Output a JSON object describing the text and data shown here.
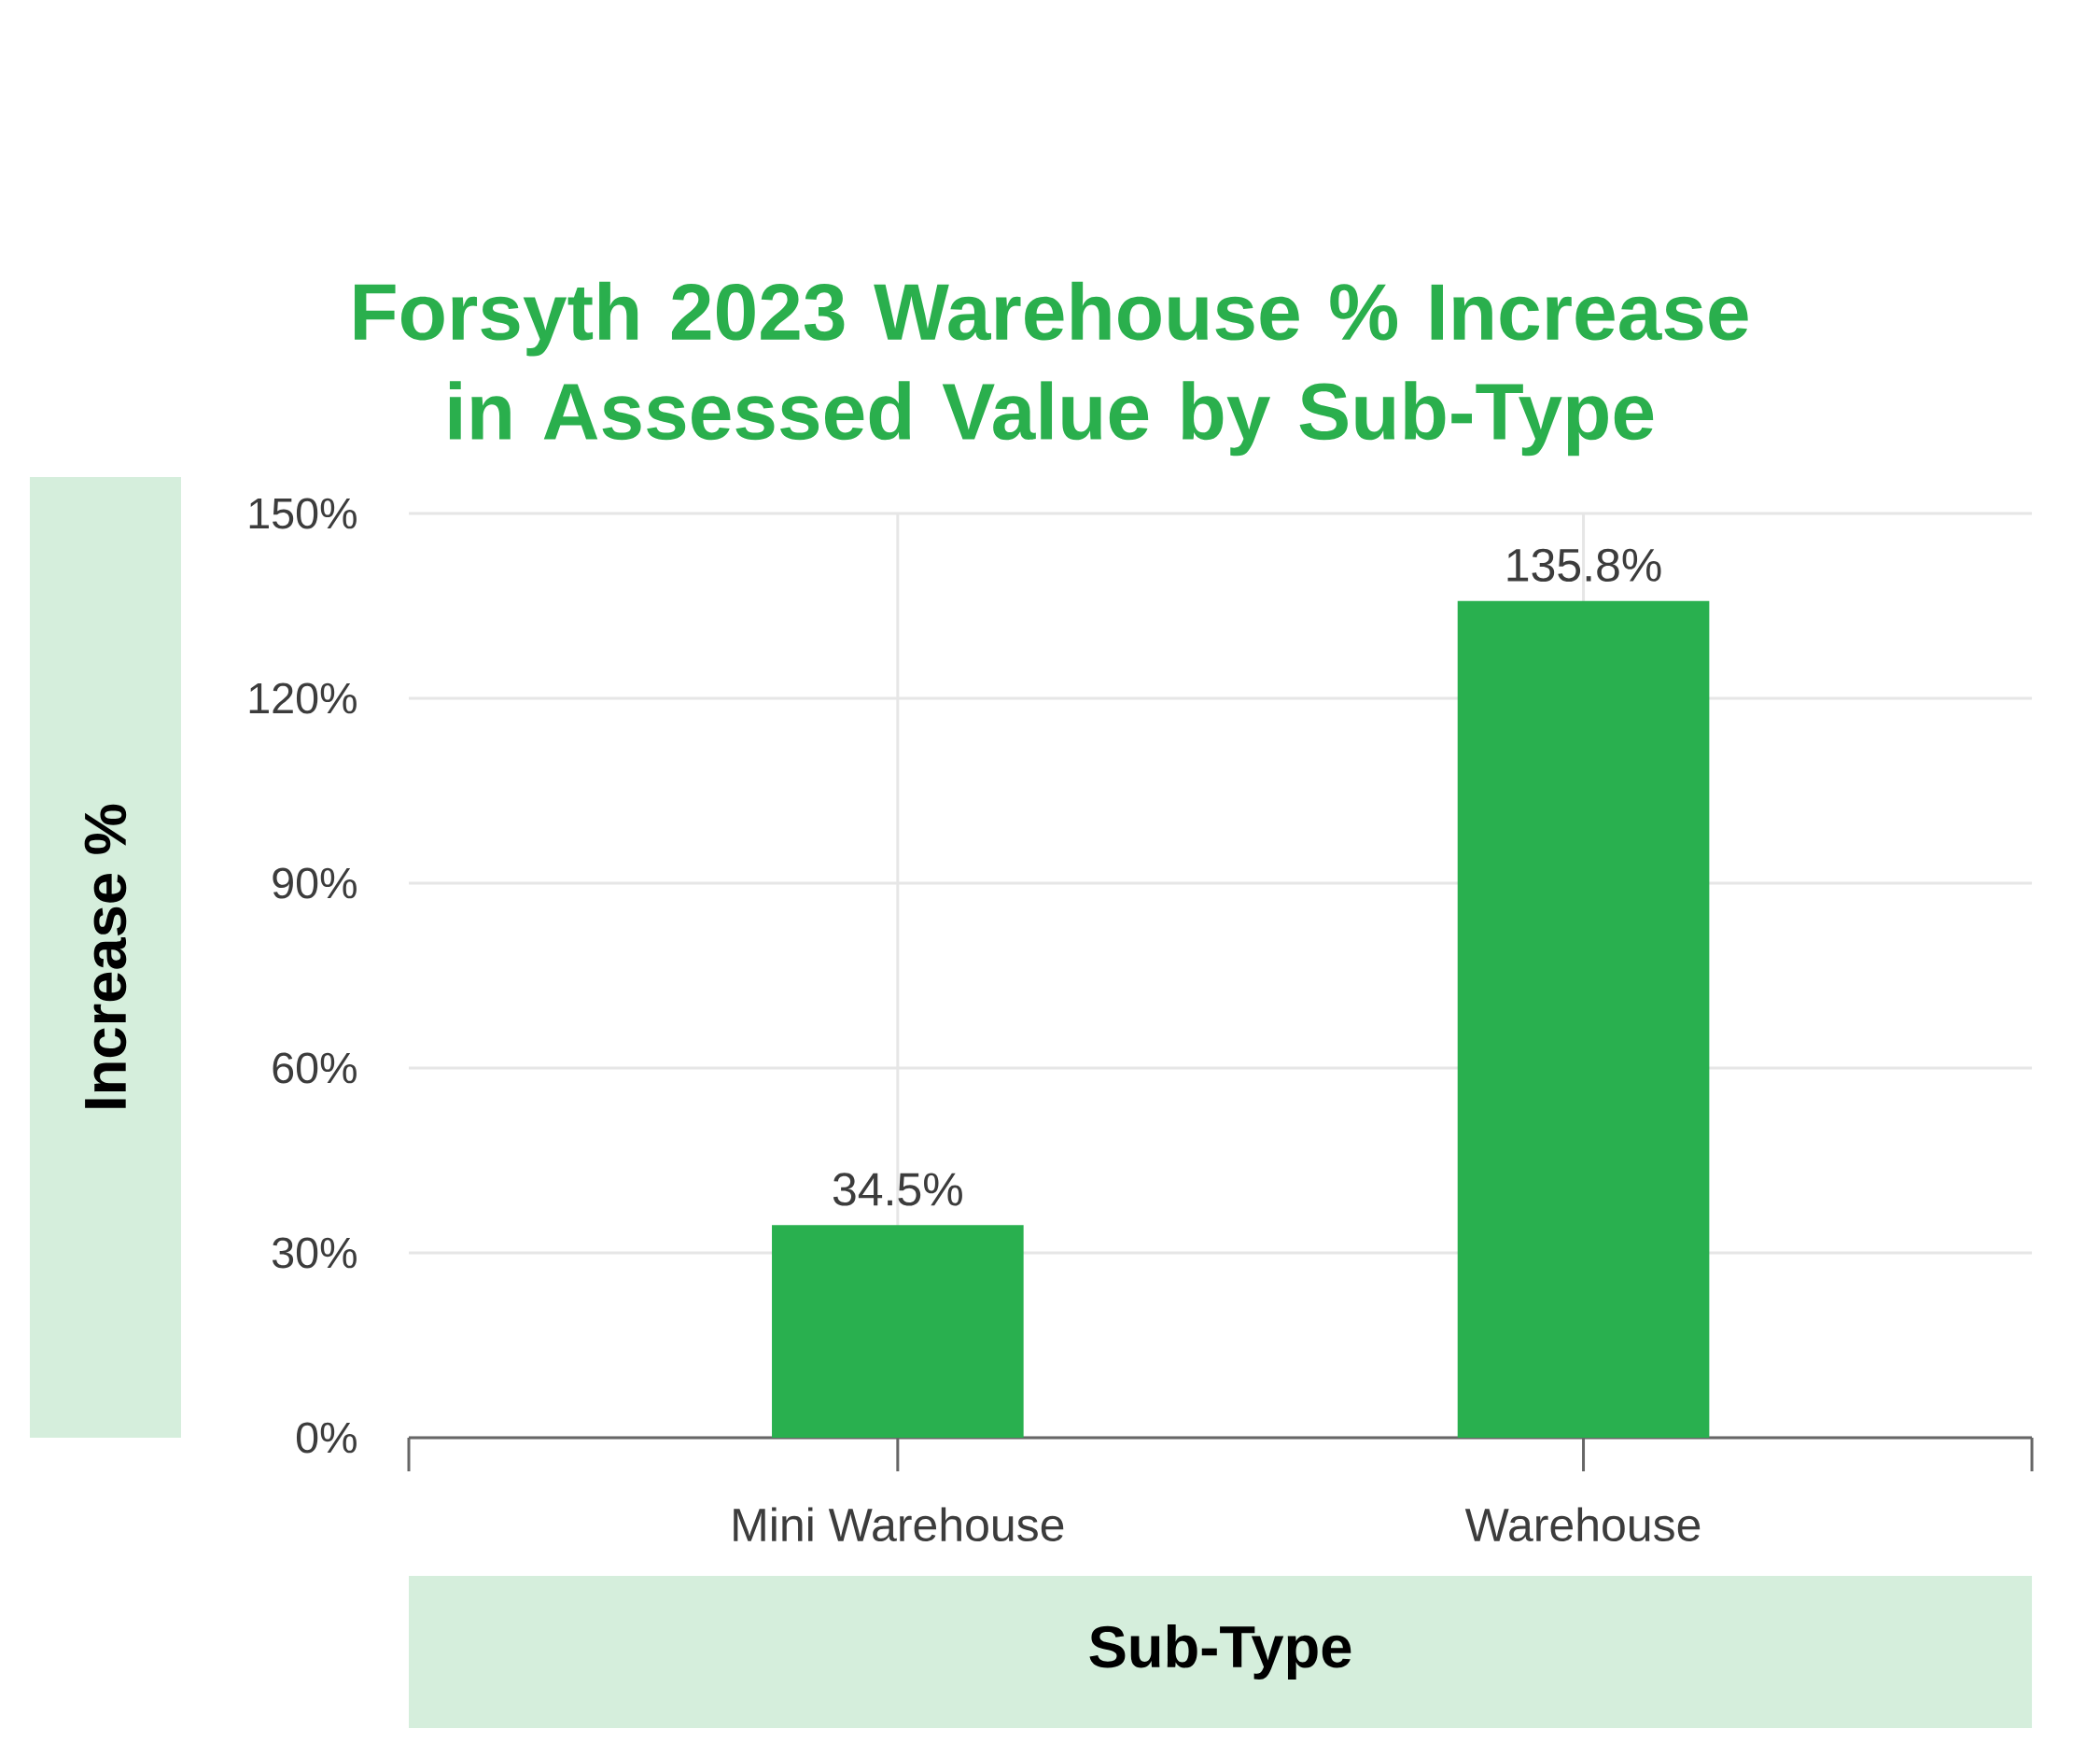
{
  "chart_data": {
    "type": "bar",
    "title": "Forsyth 2023 Warehouse % Increase in Assessed Value by Sub-Type",
    "xlabel": "Sub-Type",
    "ylabel": "Increase %",
    "categories": [
      "Mini Warehouse",
      "Warehouse"
    ],
    "values": [
      34.5,
      135.8
    ],
    "color": "#29b04f",
    "value_labels": [
      "34.5%",
      "135.8%"
    ],
    "ylim": [
      0,
      150
    ],
    "yticks": [
      {
        "value": 0,
        "label": "0%"
      },
      {
        "value": 30,
        "label": "30%"
      },
      {
        "value": 60,
        "label": "60%"
      },
      {
        "value": 90,
        "label": "90%"
      },
      {
        "value": 120,
        "label": "120%"
      },
      {
        "value": 150,
        "label": "150%"
      }
    ],
    "grid": true
  }
}
